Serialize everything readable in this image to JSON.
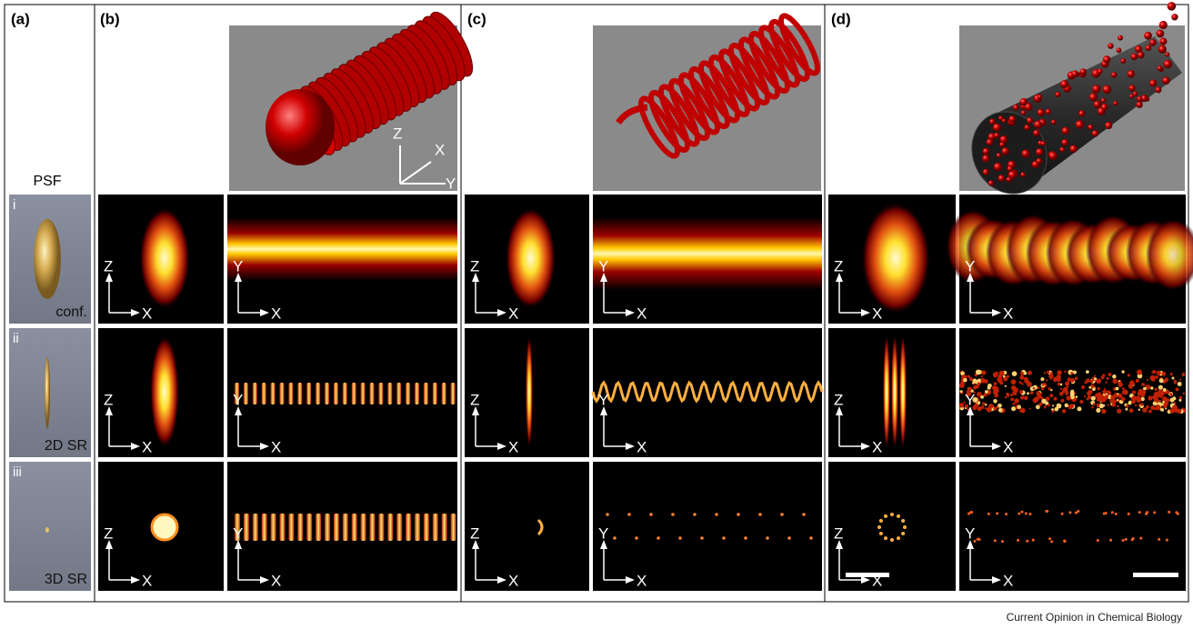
{
  "panels": [
    {
      "label": "(a)"
    },
    {
      "label": "(b)"
    },
    {
      "label": "(c)"
    },
    {
      "label": "(d)"
    }
  ],
  "psf": {
    "title": "PSF",
    "rows": [
      {
        "numeral": "i",
        "label": "conf."
      },
      {
        "numeral": "ii",
        "label": "2D SR"
      },
      {
        "numeral": "iii",
        "label": "3D SR"
      }
    ]
  },
  "axes": {
    "z": "Z",
    "x": "X",
    "y": "Y"
  },
  "credit": "Current Opinion in Chemical Biology"
}
